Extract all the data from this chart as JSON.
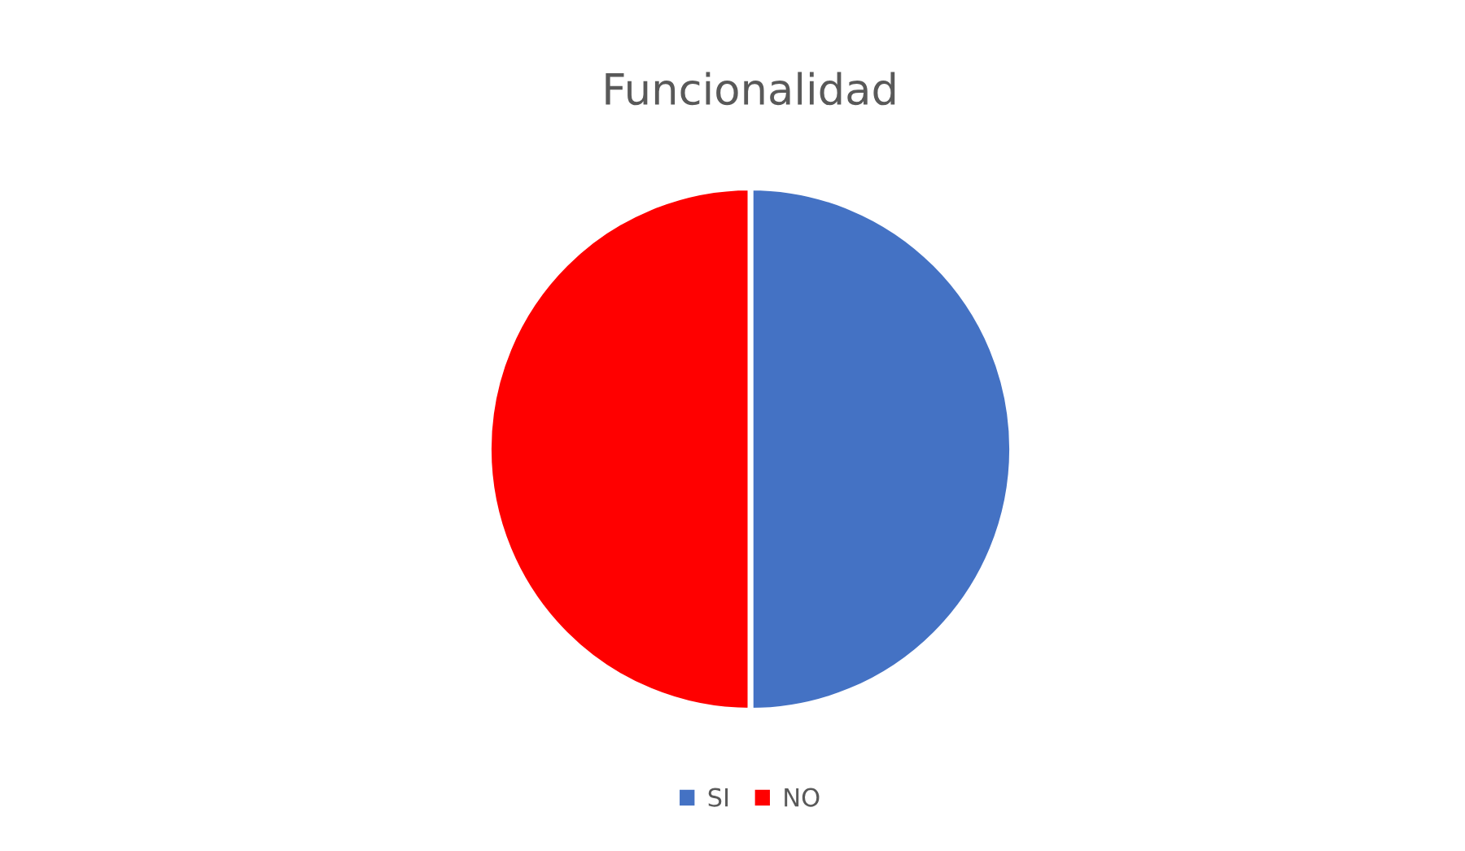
{
  "chart_data": {
    "type": "pie",
    "title": "Funcionalidad",
    "categories": [
      "SI",
      "NO"
    ],
    "values": [
      50,
      50
    ],
    "colors": [
      "#4472c4",
      "#ff0000"
    ],
    "legend": "bottom"
  }
}
